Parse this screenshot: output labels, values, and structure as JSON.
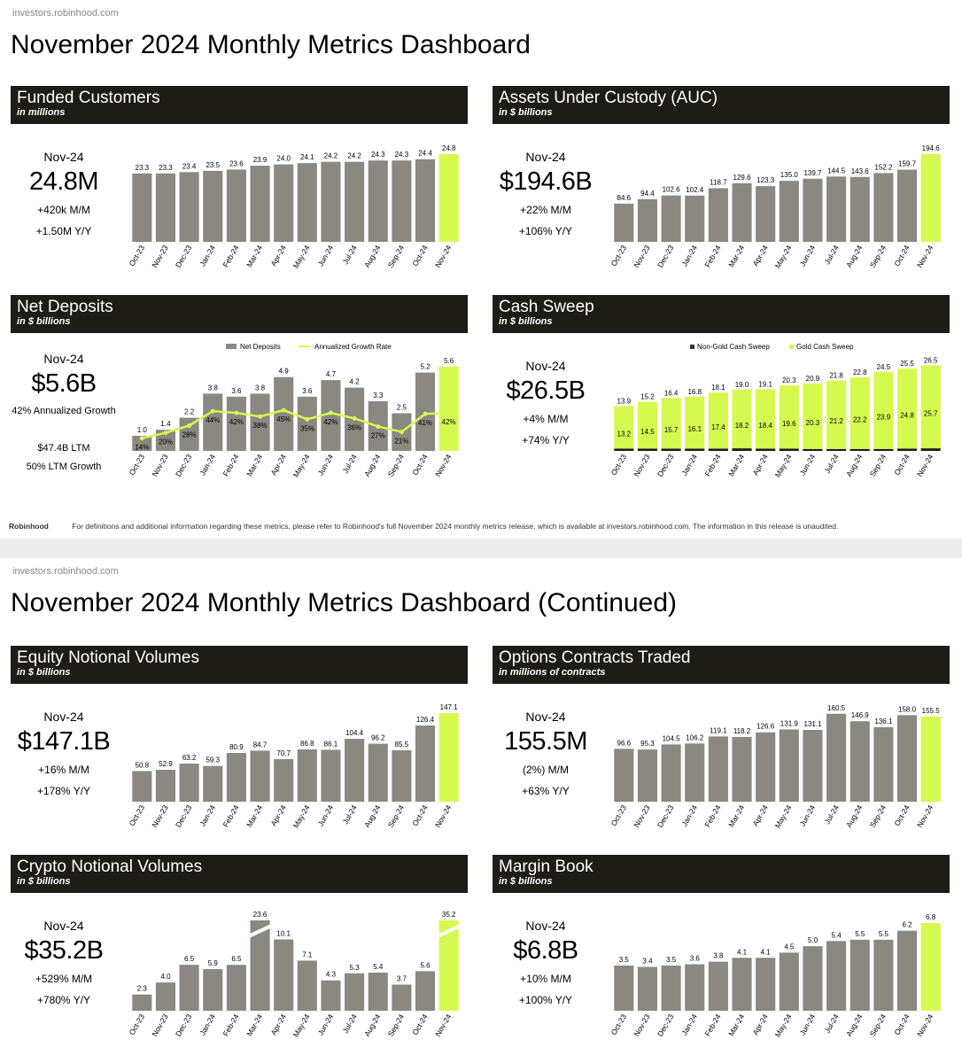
{
  "colors": {
    "gray": "#8b8781",
    "lime": "#d6f950",
    "header": "#1e1c16"
  },
  "pages": [
    {
      "domain": "investors.robinhood.com",
      "title": "November 2024 Monthly Metrics Dashboard",
      "footer": {
        "logo": "Robinhood",
        "text": "For definitions and additional information regarding these metrics, please refer to Robinhood's full November 2024 monthly metrics release, which is available at investors.robinhood.com. The information in this release is unaudited."
      }
    },
    {
      "domain": "investors.robinhood.com",
      "title": "November 2024 Monthly Metrics Dashboard (Continued)"
    }
  ],
  "panels": {
    "funded": {
      "title": "Funded Customers",
      "subtitle": "in millions",
      "period": "Nov-24",
      "big": "24.8M",
      "line1": "+420k M/M",
      "line2": "+1.50M Y/Y"
    },
    "auc": {
      "title": "Assets Under Custody (AUC)",
      "subtitle": "in $ billions",
      "period": "Nov-24",
      "big": "$194.6B",
      "line1": "+22% M/M",
      "line2": "+106% Y/Y"
    },
    "netdep": {
      "title": "Net Deposits",
      "subtitle": "in $ billions",
      "period": "Nov-24",
      "big": "$5.6B",
      "line1": "42% Annualized Growth",
      "line2": "$47.4B LTM",
      "line3": "50% LTM Growth"
    },
    "cash": {
      "title": "Cash Sweep",
      "subtitle": "in $ billions",
      "period": "Nov-24",
      "big": "$26.5B",
      "line1": "+4% M/M",
      "line2": "+74% Y/Y"
    },
    "equity": {
      "title": "Equity Notional Volumes",
      "subtitle": "in $ billions",
      "period": "Nov-24",
      "big": "$147.1B",
      "line1": "+16% M/M",
      "line2": "+178% Y/Y"
    },
    "options": {
      "title": "Options Contracts Traded",
      "subtitle": "in millions of contracts",
      "period": "Nov-24",
      "big": "155.5M",
      "line1": "(2%) M/M",
      "line2": "+63% Y/Y"
    },
    "crypto": {
      "title": "Crypto Notional Volumes",
      "subtitle": "in $ billions",
      "period": "Nov-24",
      "big": "$35.2B",
      "line1": "+529% M/M",
      "line2": "+780% Y/Y"
    },
    "margin": {
      "title": "Margin Book",
      "subtitle": "in $ billions",
      "period": "Nov-24",
      "big": "$6.8B",
      "line1": "+10% M/M",
      "line2": "+100% Y/Y"
    }
  },
  "chart_data": [
    {
      "id": "funded",
      "type": "bar",
      "categories": [
        "Oct-23",
        "Nov-23",
        "Dec-23",
        "Jan-24",
        "Feb-24",
        "Mar-24",
        "Apr-24",
        "May-24",
        "Jun-24",
        "Jul-24",
        "Aug-24",
        "Sep-24",
        "Oct-24",
        "Nov-24"
      ],
      "values": [
        23.3,
        23.3,
        23.4,
        23.5,
        23.6,
        23.9,
        24.0,
        24.1,
        24.2,
        24.2,
        24.3,
        24.3,
        24.4,
        24.8
      ],
      "labels": [
        "23.3",
        "23.3",
        "23.4",
        "23.5",
        "23.6",
        "23.9",
        "24.0",
        "24.1",
        "24.2",
        "24.2",
        "24.3",
        "24.3",
        "24.4",
        "24.8"
      ],
      "ylim": [
        18,
        25
      ]
    },
    {
      "id": "auc",
      "type": "bar",
      "categories": [
        "Oct-23",
        "Nov-23",
        "Dec-23",
        "Jan-24",
        "Feb-24",
        "Mar-24",
        "Apr-24",
        "May-24",
        "Jun-24",
        "Jul-24",
        "Aug-24",
        "Sep-24",
        "Oct-24",
        "Nov-24"
      ],
      "values": [
        84.6,
        94.4,
        102.6,
        102.4,
        118.7,
        129.6,
        123.3,
        135.0,
        139.7,
        144.5,
        143.6,
        152.2,
        159.7,
        194.6
      ],
      "labels": [
        "84.6",
        "94.4",
        "102.6",
        "102.4",
        "118.7",
        "129.6",
        "123.3",
        "135.0",
        "139.7",
        "144.5",
        "143.6",
        "152.2",
        "159.7",
        "194.6"
      ],
      "ylim": [
        0,
        200
      ]
    },
    {
      "id": "netdep",
      "type": "bar",
      "categories": [
        "Oct-23",
        "Nov-23",
        "Dec-23",
        "Jan-24",
        "Feb-24",
        "Mar-24",
        "Apr-24",
        "May-24",
        "Jun-24",
        "Jul-24",
        "Aug-24",
        "Sep-24",
        "Oct-24",
        "Nov-24"
      ],
      "values": [
        1.0,
        1.4,
        2.2,
        3.8,
        3.6,
        3.8,
        4.9,
        3.6,
        4.7,
        4.2,
        3.3,
        2.5,
        5.2,
        5.6
      ],
      "labels": [
        "1.0",
        "1.4",
        "2.2",
        "3.8",
        "3.6",
        "3.8",
        "4.9",
        "3.6",
        "4.7",
        "4.2",
        "3.3",
        "2.5",
        "5.2",
        "5.6"
      ],
      "ylim": [
        0,
        6
      ],
      "legend": [
        "Net Deposits",
        "Annualized Growth Rate"
      ],
      "growth_rate": [
        14,
        20,
        28,
        44,
        42,
        38,
        45,
        35,
        42,
        36,
        27,
        21,
        41,
        42
      ],
      "growth_labels": [
        "14%",
        "20%",
        "28%",
        "44%",
        "42%",
        "38%",
        "45%",
        "35%",
        "42%",
        "36%",
        "27%",
        "21%",
        "41%",
        "42%"
      ],
      "growth_ylim": [
        0,
        100
      ]
    },
    {
      "id": "cash",
      "type": "bar",
      "stacked": true,
      "categories": [
        "Oct-23",
        "Nov-23",
        "Dec-23",
        "Jan-24",
        "Feb-24",
        "Mar-24",
        "Apr-24",
        "May-24",
        "Jun-24",
        "Jul-24",
        "Aug-24",
        "Sep-24",
        "Oct-24",
        "Nov-24"
      ],
      "totals": [
        13.9,
        15.2,
        16.4,
        16.8,
        18.1,
        19.0,
        19.1,
        20.3,
        20.9,
        21.8,
        22.8,
        24.5,
        25.5,
        26.5
      ],
      "total_labels": [
        "13.9",
        "15.2",
        "16.4",
        "16.8",
        "18.1",
        "19.0",
        "19.1",
        "20.3",
        "20.9",
        "21.8",
        "22.8",
        "24.5",
        "25.5",
        "26.5"
      ],
      "series": [
        {
          "name": "Non-Gold Cash Sweep",
          "values": [
            0.7,
            0.7,
            0.7,
            0.7,
            0.7,
            0.8,
            0.7,
            0.7,
            0.6,
            0.6,
            0.6,
            0.6,
            0.7,
            0.8
          ]
        },
        {
          "name": "Gold Cash Sweep",
          "values": [
            13.2,
            14.5,
            15.7,
            16.1,
            17.4,
            18.2,
            18.4,
            19.6,
            20.3,
            21.2,
            22.2,
            23.9,
            24.8,
            25.7
          ],
          "labels": [
            "13.2",
            "14.5",
            "15.7",
            "16.1",
            "17.4",
            "18.2",
            "18.4",
            "19.6",
            "20.3",
            "21.2",
            "22.2",
            "23.9",
            "24.8",
            "25.7"
          ]
        }
      ],
      "ylim": [
        0,
        28
      ]
    },
    {
      "id": "equity",
      "type": "bar",
      "categories": [
        "Oct-23",
        "Nov-23",
        "Dec-23",
        "Jan-24",
        "Feb-24",
        "Mar-24",
        "Apr-24",
        "May-24",
        "Jun-24",
        "Jul-24",
        "Aug-24",
        "Sep-24",
        "Oct-24",
        "Nov-24"
      ],
      "values": [
        50.8,
        52.9,
        63.2,
        59.3,
        80.9,
        84.7,
        70.7,
        86.8,
        86.1,
        104.4,
        96.2,
        85.5,
        126.4,
        147.1
      ],
      "labels": [
        "50.8",
        "52.9",
        "63.2",
        "59.3",
        "80.9",
        "84.7",
        "70.7",
        "86.8",
        "86.1",
        "104.4",
        "96.2",
        "85.5",
        "126.4",
        "147.1"
      ],
      "ylim": [
        0,
        150
      ]
    },
    {
      "id": "options",
      "type": "bar",
      "categories": [
        "Oct-23",
        "Nov-23",
        "Dec-23",
        "Jan-24",
        "Feb-24",
        "Mar-24",
        "Apr-24",
        "May-24",
        "Jun-24",
        "Jul-24",
        "Aug-24",
        "Sep-24",
        "Oct-24",
        "Nov-24"
      ],
      "values": [
        96.6,
        95.3,
        104.5,
        106.2,
        119.1,
        118.2,
        126.6,
        131.9,
        131.1,
        160.5,
        146.9,
        136.1,
        158.0,
        155.5
      ],
      "labels": [
        "96.6",
        "95.3",
        "104.5",
        "106.2",
        "119.1",
        "118.2",
        "126.6",
        "131.9",
        "131.1",
        "160.5",
        "146.9",
        "136.1",
        "158.0",
        "155.5"
      ],
      "ylim": [
        0,
        165
      ]
    },
    {
      "id": "crypto",
      "type": "bar",
      "categories": [
        "Oct-23",
        "Nov-23",
        "Dec-23",
        "Jan-24",
        "Feb-24",
        "Mar-24",
        "Apr-24",
        "May-24",
        "Jun-24",
        "Jul-24",
        "Aug-24",
        "Sep-24",
        "Oct-24",
        "Nov-24"
      ],
      "values": [
        2.3,
        4.0,
        6.5,
        5.9,
        6.5,
        23.6,
        10.1,
        7.1,
        4.3,
        5.3,
        5.4,
        3.7,
        5.6,
        35.2
      ],
      "labels": [
        "2.3",
        "4.0",
        "6.5",
        "5.9",
        "6.5",
        "23.6",
        "10.1",
        "7.1",
        "4.3",
        "5.3",
        "5.4",
        "3.7",
        "5.6",
        "35.2"
      ],
      "ylim": [
        0,
        12.8
      ],
      "broken": [
        5,
        13
      ]
    },
    {
      "id": "margin",
      "type": "bar",
      "categories": [
        "Oct-23",
        "Nov-23",
        "Dec-23",
        "Jan-24",
        "Feb-24",
        "Mar-24",
        "Apr-24",
        "May-24",
        "Jun-24",
        "Jul-24",
        "Aug-24",
        "Sep-24",
        "Oct-24",
        "Nov-24"
      ],
      "values": [
        3.5,
        3.4,
        3.5,
        3.6,
        3.8,
        4.1,
        4.1,
        4.5,
        5.0,
        5.4,
        5.5,
        5.5,
        6.2,
        6.8
      ],
      "labels": [
        "3.5",
        "3.4",
        "3.5",
        "3.6",
        "3.8",
        "4.1",
        "4.1",
        "4.5",
        "5.0",
        "5.4",
        "5.5",
        "5.5",
        "6.2",
        "6.8"
      ],
      "ylim": [
        0,
        7
      ]
    }
  ]
}
